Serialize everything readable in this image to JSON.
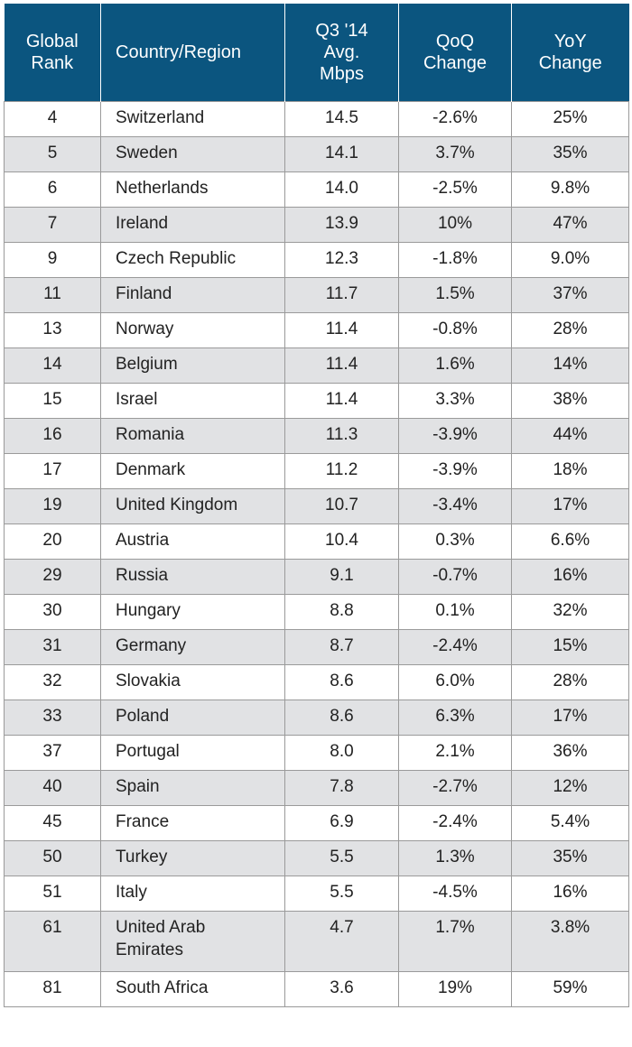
{
  "chart_data": {
    "type": "table",
    "columns": [
      {
        "key": "rank",
        "lines": [
          "Global",
          "Rank"
        ]
      },
      {
        "key": "country",
        "lines": [
          "Country/Region"
        ]
      },
      {
        "key": "mbps",
        "lines": [
          "Q3 '14",
          "Avg.",
          "Mbps"
        ]
      },
      {
        "key": "qoq",
        "lines": [
          "QoQ",
          "Change"
        ]
      },
      {
        "key": "yoy",
        "lines": [
          "YoY",
          "Change"
        ]
      }
    ],
    "rows": [
      {
        "rank": "4",
        "country": "Switzerland",
        "mbps": "14.5",
        "qoq": "-2.6%",
        "yoy": "25%"
      },
      {
        "rank": "5",
        "country": "Sweden",
        "mbps": "14.1",
        "qoq": "3.7%",
        "yoy": "35%"
      },
      {
        "rank": "6",
        "country": "Netherlands",
        "mbps": "14.0",
        "qoq": "-2.5%",
        "yoy": "9.8%"
      },
      {
        "rank": "7",
        "country": "Ireland",
        "mbps": "13.9",
        "qoq": "10%",
        "yoy": "47%"
      },
      {
        "rank": "9",
        "country": "Czech Republic",
        "mbps": "12.3",
        "qoq": "-1.8%",
        "yoy": "9.0%"
      },
      {
        "rank": "11",
        "country": "Finland",
        "mbps": "11.7",
        "qoq": "1.5%",
        "yoy": "37%"
      },
      {
        "rank": "13",
        "country": "Norway",
        "mbps": "11.4",
        "qoq": "-0.8%",
        "yoy": "28%"
      },
      {
        "rank": "14",
        "country": "Belgium",
        "mbps": "11.4",
        "qoq": "1.6%",
        "yoy": "14%"
      },
      {
        "rank": "15",
        "country": "Israel",
        "mbps": "11.4",
        "qoq": "3.3%",
        "yoy": "38%"
      },
      {
        "rank": "16",
        "country": "Romania",
        "mbps": "11.3",
        "qoq": "-3.9%",
        "yoy": "44%"
      },
      {
        "rank": "17",
        "country": "Denmark",
        "mbps": "11.2",
        "qoq": "-3.9%",
        "yoy": "18%"
      },
      {
        "rank": "19",
        "country": "United Kingdom",
        "mbps": "10.7",
        "qoq": "-3.4%",
        "yoy": "17%"
      },
      {
        "rank": "20",
        "country": "Austria",
        "mbps": "10.4",
        "qoq": "0.3%",
        "yoy": "6.6%"
      },
      {
        "rank": "29",
        "country": "Russia",
        "mbps": "9.1",
        "qoq": "-0.7%",
        "yoy": "16%"
      },
      {
        "rank": "30",
        "country": "Hungary",
        "mbps": "8.8",
        "qoq": "0.1%",
        "yoy": "32%"
      },
      {
        "rank": "31",
        "country": "Germany",
        "mbps": "8.7",
        "qoq": "-2.4%",
        "yoy": "15%"
      },
      {
        "rank": "32",
        "country": "Slovakia",
        "mbps": "8.6",
        "qoq": "6.0%",
        "yoy": "28%"
      },
      {
        "rank": "33",
        "country": "Poland",
        "mbps": "8.6",
        "qoq": "6.3%",
        "yoy": "17%"
      },
      {
        "rank": "37",
        "country": "Portugal",
        "mbps": "8.0",
        "qoq": "2.1%",
        "yoy": "36%"
      },
      {
        "rank": "40",
        "country": "Spain",
        "mbps": "7.8",
        "qoq": "-2.7%",
        "yoy": "12%"
      },
      {
        "rank": "45",
        "country": "France",
        "mbps": "6.9",
        "qoq": "-2.4%",
        "yoy": "5.4%"
      },
      {
        "rank": "50",
        "country": "Turkey",
        "mbps": "5.5",
        "qoq": "1.3%",
        "yoy": "35%"
      },
      {
        "rank": "51",
        "country": "Italy",
        "mbps": "5.5",
        "qoq": "-4.5%",
        "yoy": "16%"
      },
      {
        "rank": "61",
        "country": "United Arab Emirates",
        "country_lines": [
          "United Arab",
          "Emirates"
        ],
        "mbps": "4.7",
        "qoq": "1.7%",
        "yoy": "3.8%"
      },
      {
        "rank": "81",
        "country": "South Africa",
        "mbps": "3.6",
        "qoq": "19%",
        "yoy": "59%"
      }
    ]
  },
  "colors": {
    "header_bg": "#0b557f",
    "header_text": "#ffffff",
    "row_alt_bg": "#e1e2e4",
    "row_bg": "#ffffff",
    "border": "#9a9a9a"
  }
}
